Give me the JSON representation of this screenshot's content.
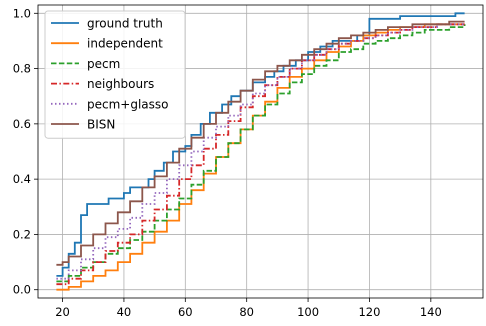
{
  "chart_data": {
    "type": "line",
    "step": "post",
    "title": "",
    "xlabel": "",
    "ylabel": "",
    "xlim": [
      12,
      157
    ],
    "ylim": [
      -0.03,
      1.03
    ],
    "xticks": [
      20,
      40,
      60,
      80,
      100,
      120,
      140
    ],
    "yticks": [
      0.0,
      0.2,
      0.4,
      0.6,
      0.8,
      1.0
    ],
    "grid": true,
    "legend": {
      "location": "upper-left"
    },
    "series": [
      {
        "name": "ground truth",
        "color": "#1f77b4",
        "dash": "solid",
        "points": [
          [
            18,
            0.05
          ],
          [
            20,
            0.08
          ],
          [
            22,
            0.13
          ],
          [
            24,
            0.17
          ],
          [
            26,
            0.27
          ],
          [
            28,
            0.31
          ],
          [
            35,
            0.33
          ],
          [
            40,
            0.35
          ],
          [
            42,
            0.37
          ],
          [
            45,
            0.37
          ],
          [
            48,
            0.4
          ],
          [
            50,
            0.43
          ],
          [
            53,
            0.46
          ],
          [
            56,
            0.5
          ],
          [
            60,
            0.52
          ],
          [
            62,
            0.56
          ],
          [
            65,
            0.6
          ],
          [
            68,
            0.64
          ],
          [
            72,
            0.67
          ],
          [
            75,
            0.7
          ],
          [
            78,
            0.72
          ],
          [
            82,
            0.75
          ],
          [
            86,
            0.77
          ],
          [
            89,
            0.79
          ],
          [
            92,
            0.81
          ],
          [
            96,
            0.83
          ],
          [
            100,
            0.86
          ],
          [
            104,
            0.88
          ],
          [
            108,
            0.9
          ],
          [
            112,
            0.9
          ],
          [
            116,
            0.92
          ],
          [
            120,
            0.98
          ],
          [
            130,
            0.99
          ],
          [
            148,
            1.0
          ],
          [
            151,
            1.0
          ]
        ]
      },
      {
        "name": "independent",
        "color": "#ff7f0e",
        "dash": "solid",
        "points": [
          [
            18,
            0.0
          ],
          [
            22,
            0.01
          ],
          [
            26,
            0.03
          ],
          [
            30,
            0.05
          ],
          [
            34,
            0.07
          ],
          [
            38,
            0.1
          ],
          [
            42,
            0.13
          ],
          [
            46,
            0.17
          ],
          [
            50,
            0.21
          ],
          [
            54,
            0.25
          ],
          [
            58,
            0.31
          ],
          [
            62,
            0.36
          ],
          [
            66,
            0.42
          ],
          [
            70,
            0.48
          ],
          [
            74,
            0.53
          ],
          [
            78,
            0.58
          ],
          [
            82,
            0.63
          ],
          [
            86,
            0.68
          ],
          [
            90,
            0.73
          ],
          [
            94,
            0.77
          ],
          [
            98,
            0.8
          ],
          [
            102,
            0.83
          ],
          [
            106,
            0.86
          ],
          [
            110,
            0.88
          ],
          [
            114,
            0.9
          ],
          [
            118,
            0.92
          ],
          [
            122,
            0.93
          ],
          [
            126,
            0.94
          ],
          [
            130,
            0.95
          ],
          [
            134,
            0.95
          ],
          [
            138,
            0.96
          ],
          [
            142,
            0.96
          ],
          [
            146,
            0.96
          ],
          [
            151,
            0.96
          ]
        ]
      },
      {
        "name": "pecm",
        "color": "#2ca02c",
        "dash": "dashed",
        "points": [
          [
            18,
            0.03
          ],
          [
            22,
            0.05
          ],
          [
            26,
            0.08
          ],
          [
            30,
            0.1
          ],
          [
            34,
            0.13
          ],
          [
            38,
            0.15
          ],
          [
            42,
            0.18
          ],
          [
            46,
            0.21
          ],
          [
            50,
            0.25
          ],
          [
            54,
            0.29
          ],
          [
            58,
            0.33
          ],
          [
            62,
            0.38
          ],
          [
            66,
            0.43
          ],
          [
            70,
            0.48
          ],
          [
            74,
            0.53
          ],
          [
            78,
            0.58
          ],
          [
            82,
            0.63
          ],
          [
            86,
            0.67
          ],
          [
            90,
            0.71
          ],
          [
            94,
            0.75
          ],
          [
            98,
            0.78
          ],
          [
            102,
            0.81
          ],
          [
            106,
            0.83
          ],
          [
            110,
            0.86
          ],
          [
            114,
            0.87
          ],
          [
            118,
            0.89
          ],
          [
            122,
            0.9
          ],
          [
            126,
            0.91
          ],
          [
            130,
            0.92
          ],
          [
            134,
            0.93
          ],
          [
            138,
            0.94
          ],
          [
            142,
            0.94
          ],
          [
            146,
            0.95
          ],
          [
            151,
            0.96
          ]
        ]
      },
      {
        "name": "neighbours",
        "color": "#d62728",
        "dash": "dashdot",
        "points": [
          [
            18,
            0.02
          ],
          [
            22,
            0.04
          ],
          [
            26,
            0.07
          ],
          [
            30,
            0.1
          ],
          [
            34,
            0.14
          ],
          [
            38,
            0.17
          ],
          [
            42,
            0.2
          ],
          [
            46,
            0.25
          ],
          [
            50,
            0.29
          ],
          [
            54,
            0.34
          ],
          [
            58,
            0.4
          ],
          [
            62,
            0.45
          ],
          [
            66,
            0.51
          ],
          [
            70,
            0.56
          ],
          [
            74,
            0.61
          ],
          [
            78,
            0.66
          ],
          [
            82,
            0.7
          ],
          [
            86,
            0.74
          ],
          [
            90,
            0.77
          ],
          [
            94,
            0.8
          ],
          [
            98,
            0.83
          ],
          [
            102,
            0.85
          ],
          [
            106,
            0.87
          ],
          [
            110,
            0.89
          ],
          [
            114,
            0.9
          ],
          [
            118,
            0.91
          ],
          [
            122,
            0.92
          ],
          [
            126,
            0.93
          ],
          [
            130,
            0.94
          ],
          [
            134,
            0.95
          ],
          [
            138,
            0.95
          ],
          [
            142,
            0.96
          ],
          [
            146,
            0.96
          ],
          [
            151,
            0.96
          ]
        ]
      },
      {
        "name": "pecm+glasso",
        "color": "#9467bd",
        "dash": "dotted",
        "points": [
          [
            18,
            0.04
          ],
          [
            22,
            0.07
          ],
          [
            26,
            0.11
          ],
          [
            30,
            0.15
          ],
          [
            34,
            0.19
          ],
          [
            38,
            0.22
          ],
          [
            42,
            0.26
          ],
          [
            46,
            0.31
          ],
          [
            50,
            0.35
          ],
          [
            54,
            0.4
          ],
          [
            58,
            0.45
          ],
          [
            62,
            0.5
          ],
          [
            66,
            0.55
          ],
          [
            70,
            0.59
          ],
          [
            74,
            0.63
          ],
          [
            78,
            0.67
          ],
          [
            82,
            0.71
          ],
          [
            86,
            0.74
          ],
          [
            90,
            0.77
          ],
          [
            94,
            0.8
          ],
          [
            98,
            0.83
          ],
          [
            102,
            0.85
          ],
          [
            106,
            0.87
          ],
          [
            110,
            0.89
          ],
          [
            114,
            0.9
          ],
          [
            118,
            0.91
          ],
          [
            122,
            0.92
          ],
          [
            126,
            0.93
          ],
          [
            130,
            0.94
          ],
          [
            134,
            0.95
          ],
          [
            138,
            0.95
          ],
          [
            142,
            0.96
          ],
          [
            146,
            0.96
          ],
          [
            151,
            0.96
          ]
        ]
      },
      {
        "name": "BISN",
        "color": "#8c564b",
        "dash": "solid",
        "points": [
          [
            18,
            0.09
          ],
          [
            20,
            0.1
          ],
          [
            22,
            0.12
          ],
          [
            26,
            0.16
          ],
          [
            30,
            0.2
          ],
          [
            34,
            0.24
          ],
          [
            38,
            0.28
          ],
          [
            42,
            0.32
          ],
          [
            46,
            0.37
          ],
          [
            50,
            0.41
          ],
          [
            54,
            0.46
          ],
          [
            58,
            0.51
          ],
          [
            62,
            0.55
          ],
          [
            66,
            0.6
          ],
          [
            70,
            0.64
          ],
          [
            74,
            0.68
          ],
          [
            78,
            0.72
          ],
          [
            82,
            0.76
          ],
          [
            86,
            0.79
          ],
          [
            90,
            0.81
          ],
          [
            94,
            0.83
          ],
          [
            98,
            0.85
          ],
          [
            102,
            0.87
          ],
          [
            106,
            0.89
          ],
          [
            110,
            0.91
          ],
          [
            114,
            0.92
          ],
          [
            118,
            0.93
          ],
          [
            122,
            0.94
          ],
          [
            126,
            0.95
          ],
          [
            130,
            0.95
          ],
          [
            134,
            0.96
          ],
          [
            138,
            0.96
          ],
          [
            142,
            0.96
          ],
          [
            146,
            0.97
          ],
          [
            151,
            0.97
          ]
        ]
      }
    ]
  }
}
